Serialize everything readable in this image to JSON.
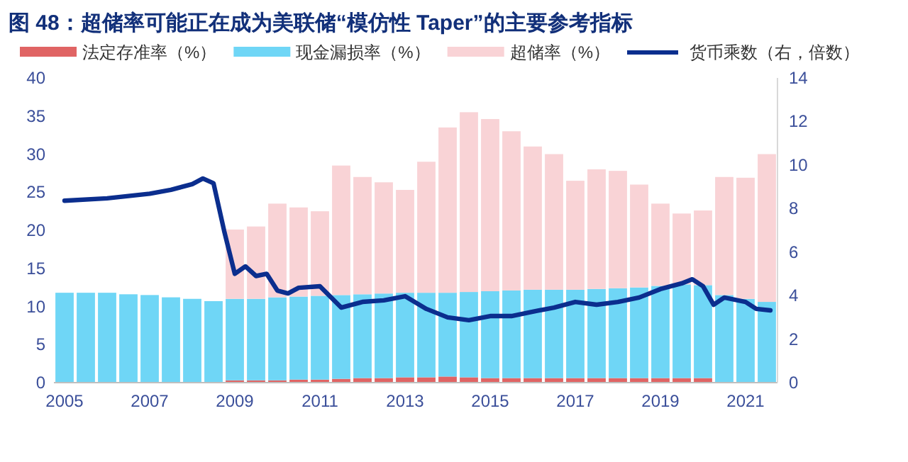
{
  "chart_data": {
    "type": "bar",
    "title": "图 48：超储率可能正在成为美联储“模仿性 Taper”的主要参考指标",
    "stacked": true,
    "legend": "top",
    "x": [
      "2005-01",
      "2005-07",
      "2006-01",
      "2006-07",
      "2007-01",
      "2007-07",
      "2008-01",
      "2008-07",
      "2009-01",
      "2009-07",
      "2010-01",
      "2010-07",
      "2011-01",
      "2011-07",
      "2012-01",
      "2012-07",
      "2013-01",
      "2013-07",
      "2014-01",
      "2014-07",
      "2015-01",
      "2015-07",
      "2016-01",
      "2016-07",
      "2017-01",
      "2017-07",
      "2018-01",
      "2018-07",
      "2019-01",
      "2019-07",
      "2020-01",
      "2020-07",
      "2021-01",
      "2021-07"
    ],
    "xlim": [
      "2004-10",
      "2021-10"
    ],
    "xticks": [
      "2005",
      "2007",
      "2009",
      "2011",
      "2013",
      "2015",
      "2017",
      "2019",
      "2021"
    ],
    "ylim": [
      0,
      40
    ],
    "yticks": [
      0,
      5,
      10,
      15,
      20,
      25,
      30,
      35,
      40
    ],
    "y2lim": [
      0,
      14
    ],
    "y2ticks": [
      0,
      2,
      4,
      6,
      8,
      10,
      12,
      14
    ],
    "series": [
      {
        "name": "法定存准率（%）",
        "color": "#e06464",
        "values": [
          null,
          null,
          null,
          null,
          null,
          null,
          null,
          null,
          0.3,
          0.3,
          0.3,
          0.4,
          0.4,
          0.5,
          0.6,
          0.6,
          0.7,
          0.7,
          0.8,
          0.7,
          0.6,
          0.6,
          0.6,
          0.6,
          0.6,
          0.6,
          0.6,
          0.6,
          0.6,
          0.6,
          0.6,
          null,
          null,
          null
        ]
      },
      {
        "name": "现金漏损率（%）",
        "color": "#6fd6f6",
        "values": [
          11.8,
          11.8,
          11.8,
          11.6,
          11.5,
          11.2,
          11.0,
          10.7,
          10.7,
          10.7,
          10.9,
          10.9,
          11.0,
          11.0,
          11.0,
          11.1,
          11.1,
          11.1,
          11.0,
          11.2,
          11.4,
          11.5,
          11.6,
          11.6,
          11.6,
          11.7,
          11.8,
          11.9,
          12.1,
          12.3,
          12.2,
          11.5,
          11.0,
          10.6
        ]
      },
      {
        "name": "超储率（%）",
        "color": "#f9d3d6",
        "values": [
          null,
          null,
          null,
          null,
          null,
          null,
          null,
          null,
          9.1,
          9.5,
          12.3,
          11.7,
          11.1,
          17.0,
          15.4,
          14.6,
          13.5,
          17.2,
          21.7,
          23.6,
          22.6,
          20.9,
          18.8,
          17.8,
          14.3,
          15.7,
          15.4,
          13.5,
          10.8,
          9.3,
          9.8,
          15.5,
          15.9,
          19.4
        ]
      },
      {
        "name": "货币乘数（右，倍数）",
        "type": "line",
        "axis": "y2",
        "color": "#0b2e8e",
        "x": [
          "2005-01",
          "2006-01",
          "2007-01",
          "2007-07",
          "2008-01",
          "2008-04",
          "2008-07",
          "2008-10",
          "2009-01",
          "2009-04",
          "2009-07",
          "2009-10",
          "2010-01",
          "2010-04",
          "2010-07",
          "2011-01",
          "2011-07",
          "2012-01",
          "2012-07",
          "2013-01",
          "2013-07",
          "2014-01",
          "2014-07",
          "2015-01",
          "2015-07",
          "2016-01",
          "2016-07",
          "2017-01",
          "2017-07",
          "2018-01",
          "2018-07",
          "2019-01",
          "2019-07",
          "2019-10",
          "2020-01",
          "2020-04",
          "2020-07",
          "2021-01",
          "2021-04",
          "2021-08"
        ],
        "values": [
          8.36,
          8.47,
          8.68,
          8.86,
          9.12,
          9.38,
          9.16,
          6.97,
          5.0,
          5.34,
          4.9,
          5.0,
          4.23,
          4.1,
          4.36,
          4.43,
          3.45,
          3.71,
          3.78,
          3.97,
          3.39,
          3.0,
          2.87,
          3.06,
          3.06,
          3.26,
          3.45,
          3.71,
          3.58,
          3.71,
          3.91,
          4.3,
          4.56,
          4.75,
          4.43,
          3.58,
          3.91,
          3.71,
          3.39,
          3.32
        ]
      }
    ]
  }
}
